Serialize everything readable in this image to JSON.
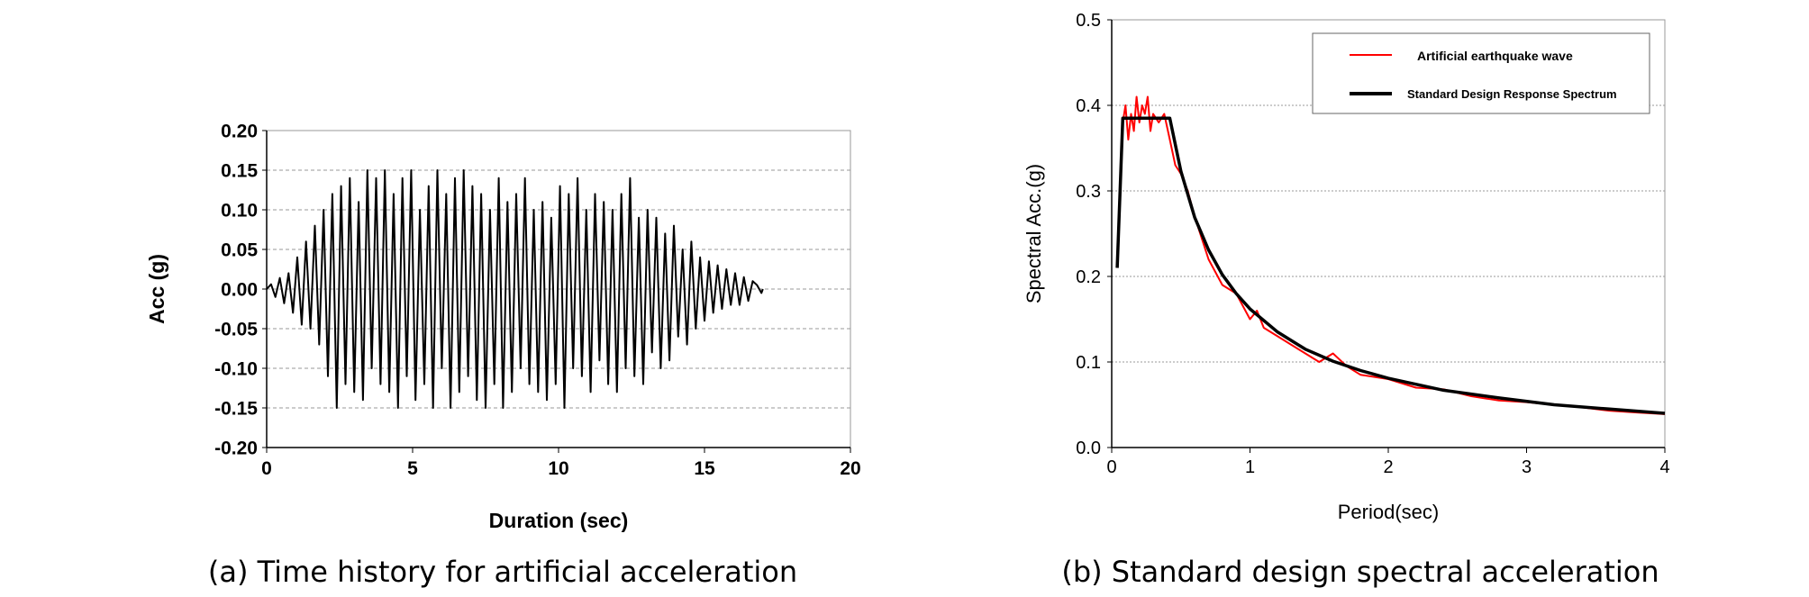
{
  "chart_data": [
    {
      "type": "line",
      "caption": "(a) Time history for artificial acceleration",
      "xlabel": "Duration (sec)",
      "ylabel": "Acc (g)",
      "xlim": [
        0,
        20
      ],
      "ylim": [
        -0.2,
        0.2
      ],
      "x_ticks": [
        "0",
        "5",
        "10",
        "15",
        "20"
      ],
      "y_ticks": [
        "0.20",
        "0.15",
        "0.10",
        "0.05",
        "0.00",
        "-0.05",
        "-0.10",
        "-0.15",
        "-0.20"
      ],
      "grid": true,
      "series": [
        {
          "color": "#000000",
          "x": [
            0,
            0.15,
            0.3,
            0.45,
            0.6,
            0.75,
            0.9,
            1.05,
            1.2,
            1.35,
            1.5,
            1.65,
            1.8,
            1.95,
            2.1,
            2.25,
            2.4,
            2.55,
            2.7,
            2.85,
            3.0,
            3.15,
            3.3,
            3.45,
            3.6,
            3.75,
            3.9,
            4.05,
            4.2,
            4.35,
            4.5,
            4.65,
            4.8,
            4.95,
            5.1,
            5.25,
            5.4,
            5.55,
            5.7,
            5.85,
            6.0,
            6.15,
            6.3,
            6.45,
            6.6,
            6.75,
            6.9,
            7.05,
            7.2,
            7.35,
            7.5,
            7.65,
            7.8,
            7.95,
            8.1,
            8.25,
            8.4,
            8.55,
            8.7,
            8.85,
            9.0,
            9.15,
            9.3,
            9.45,
            9.6,
            9.75,
            9.9,
            10.05,
            10.2,
            10.35,
            10.5,
            10.65,
            10.8,
            10.95,
            11.1,
            11.25,
            11.4,
            11.55,
            11.7,
            11.85,
            12.0,
            12.15,
            12.3,
            12.45,
            12.6,
            12.75,
            12.9,
            13.05,
            13.2,
            13.35,
            13.5,
            13.65,
            13.8,
            13.95,
            14.1,
            14.25,
            14.4,
            14.55,
            14.7,
            14.85,
            15.0,
            15.15,
            15.3,
            15.45,
            15.6,
            15.75,
            15.9,
            16.05,
            16.2,
            16.35,
            16.5,
            16.65,
            16.8,
            16.95,
            17.0
          ],
          "y": [
            0,
            0.006,
            -0.01,
            0.014,
            -0.018,
            0.02,
            -0.03,
            0.04,
            -0.045,
            0.06,
            -0.05,
            0.08,
            -0.07,
            0.1,
            -0.11,
            0.12,
            -0.15,
            0.13,
            -0.12,
            0.14,
            -0.13,
            0.11,
            -0.14,
            0.15,
            -0.1,
            0.14,
            -0.12,
            0.15,
            -0.13,
            0.12,
            -0.15,
            0.14,
            -0.11,
            0.15,
            -0.14,
            0.1,
            -0.12,
            0.13,
            -0.15,
            0.15,
            -0.1,
            0.12,
            -0.15,
            0.14,
            -0.13,
            0.15,
            -0.11,
            0.13,
            -0.14,
            0.12,
            -0.15,
            0.1,
            -0.12,
            0.14,
            -0.15,
            0.11,
            -0.13,
            0.12,
            -0.1,
            0.14,
            -0.12,
            0.1,
            -0.13,
            0.11,
            -0.14,
            0.09,
            -0.12,
            0.13,
            -0.15,
            0.12,
            -0.1,
            0.14,
            -0.11,
            0.1,
            -0.13,
            0.12,
            -0.09,
            0.11,
            -0.12,
            0.1,
            -0.13,
            0.12,
            -0.1,
            0.14,
            -0.11,
            0.09,
            -0.12,
            0.1,
            -0.08,
            0.09,
            -0.1,
            0.07,
            -0.09,
            0.08,
            -0.06,
            0.05,
            -0.07,
            0.06,
            -0.05,
            0.04,
            -0.04,
            0.035,
            -0.03,
            0.03,
            -0.025,
            0.025,
            -0.02,
            0.02,
            -0.02,
            0.015,
            -0.015,
            0.01,
            0.005,
            -0.005,
            0
          ]
        }
      ]
    },
    {
      "type": "line",
      "caption": "(b) Standard design spectral acceleration",
      "xlabel": "Period(sec)",
      "ylabel": "Spectral Acc.(g)",
      "xlim": [
        0,
        4
      ],
      "ylim": [
        0,
        0.5
      ],
      "x_ticks": [
        "0",
        "1",
        "2",
        "3",
        "4"
      ],
      "y_ticks": [
        "0.5",
        "0.4",
        "0.3",
        "0.2",
        "0.1",
        "0.0"
      ],
      "grid": true,
      "legend_position": "top-right",
      "series": [
        {
          "name": "Artificial earthquake wave",
          "color": "#ff0000",
          "x": [
            0.04,
            0.06,
            0.08,
            0.1,
            0.12,
            0.14,
            0.16,
            0.18,
            0.2,
            0.22,
            0.24,
            0.26,
            0.28,
            0.3,
            0.34,
            0.38,
            0.42,
            0.46,
            0.5,
            0.55,
            0.6,
            0.7,
            0.8,
            0.9,
            1.0,
            1.05,
            1.1,
            1.2,
            1.3,
            1.4,
            1.5,
            1.6,
            1.7,
            1.8,
            2.0,
            2.2,
            2.4,
            2.6,
            2.8,
            3.0,
            3.2,
            3.4,
            3.6,
            3.8,
            4.0
          ],
          "y": [
            0.21,
            0.3,
            0.38,
            0.4,
            0.36,
            0.39,
            0.37,
            0.41,
            0.38,
            0.4,
            0.39,
            0.41,
            0.37,
            0.39,
            0.38,
            0.39,
            0.36,
            0.33,
            0.32,
            0.3,
            0.27,
            0.22,
            0.19,
            0.18,
            0.15,
            0.16,
            0.14,
            0.13,
            0.12,
            0.11,
            0.1,
            0.11,
            0.095,
            0.085,
            0.08,
            0.07,
            0.068,
            0.06,
            0.055,
            0.053,
            0.05,
            0.047,
            0.043,
            0.041,
            0.039
          ]
        },
        {
          "name": "Standard Design Response Spectrum",
          "color": "#000000",
          "x": [
            0.04,
            0.08,
            0.42,
            0.5,
            0.6,
            0.7,
            0.8,
            0.9,
            1.0,
            1.2,
            1.4,
            1.6,
            1.8,
            2.0,
            2.4,
            2.8,
            3.2,
            3.6,
            4.0
          ],
          "y": [
            0.21,
            0.385,
            0.385,
            0.323,
            0.269,
            0.231,
            0.202,
            0.18,
            0.162,
            0.135,
            0.115,
            0.101,
            0.09,
            0.081,
            0.067,
            0.058,
            0.05,
            0.045,
            0.04
          ]
        }
      ]
    }
  ]
}
